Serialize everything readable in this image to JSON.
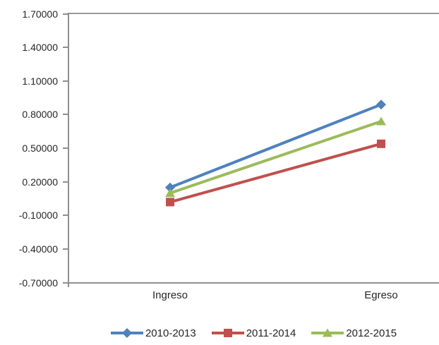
{
  "chart_data": {
    "type": "line",
    "title": "",
    "categories": [
      "Ingreso",
      "Egreso"
    ],
    "series": [
      {
        "name": "2010-2013",
        "values": [
          0.15,
          0.89
        ],
        "color": "#4F81BD",
        "marker": "diamond"
      },
      {
        "name": "2011-2014",
        "values": [
          0.02,
          0.54
        ],
        "color": "#C0504D",
        "marker": "square"
      },
      {
        "name": "2012-2015",
        "values": [
          0.1,
          0.74
        ],
        "color": "#9BBB59",
        "marker": "triangle"
      }
    ],
    "yticks": [
      1.7,
      1.4,
      1.1,
      0.8,
      0.5,
      0.2,
      -0.1,
      -0.4,
      -0.7
    ],
    "ytick_labels": [
      "1.70000",
      "1.40000",
      "1.10000",
      "0.80000",
      "0.50000",
      "0.20000",
      "-0.10000",
      "-0.40000",
      "-0.70000"
    ],
    "ylim": [
      -0.7,
      1.7
    ],
    "xlabel": "",
    "ylabel": "",
    "grid": false,
    "legend_position": "bottom",
    "colors": {
      "axis": "#8F8F8F",
      "text": "#262626",
      "background": "#FFFFFF",
      "series_blue": "#4F81BD",
      "series_red": "#C0504D",
      "series_green": "#9BBB59"
    }
  }
}
